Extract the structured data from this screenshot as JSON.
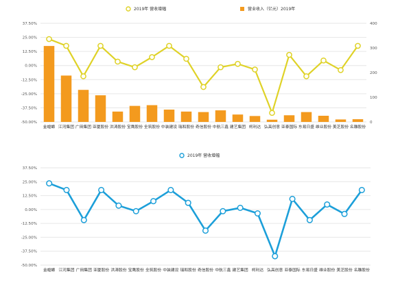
{
  "chart_data": [
    {
      "type": "bar+line",
      "legend_position": "top",
      "grid": true,
      "categories": [
        "金螳螂",
        "江河集团",
        "广田集团",
        "亚厦股份",
        "洪涛股份",
        "宝鹰股份",
        "全筑股份",
        "中装建设",
        "瑞和股份",
        "奇信股份",
        "中航三鑫",
        "建艺集团",
        "柯利达",
        "弘高创意",
        "亚泰国际",
        "东易日盛",
        "维业股份",
        "美芝股份",
        "名雕股份"
      ],
      "series": [
        {
          "name": "2019年 营收增幅",
          "type": "line",
          "axis": "left",
          "color": "#dfd227",
          "values": [
            23.5,
            17.5,
            -9.5,
            17.5,
            3.5,
            -1.5,
            7.5,
            17.5,
            6.0,
            -19.0,
            -1.5,
            1.5,
            -3.5,
            -42.0,
            9.5,
            -9.5,
            4.5,
            -4.0,
            17.5
          ]
        },
        {
          "name": "营业收入（亿元）2019年",
          "type": "bar",
          "axis": "right",
          "color": "#f39a1e",
          "values": [
            308,
            188,
            130,
            108,
            42,
            65,
            68,
            50,
            42,
            40,
            47,
            30,
            24,
            9,
            27,
            40,
            25,
            10,
            11
          ]
        }
      ],
      "y_left": {
        "min": -50,
        "max": 37.5,
        "ticks": [
          "37.50%",
          "25.00%",
          "12.50%",
          "0.00%",
          "-12.50%",
          "-25.00%",
          "-37.50%",
          "-50.00%"
        ]
      },
      "y_right": {
        "min": 0,
        "max": 400,
        "ticks": [
          "400",
          "300",
          "200",
          "100",
          "0"
        ]
      }
    },
    {
      "type": "line",
      "legend_position": "top",
      "grid": true,
      "categories": [
        "金螳螂",
        "江河集团",
        "广田集团",
        "亚厦股份",
        "洪涛股份",
        "宝鹰股份",
        "全筑股份",
        "中装建设",
        "瑞和股份",
        "奇信股份",
        "中航三鑫",
        "建艺集团",
        "柯利达",
        "弘高创意",
        "亚泰国际",
        "东易日盛",
        "维业股份",
        "美芝股份",
        "名雕股份"
      ],
      "series": [
        {
          "name": "2019年 营收增幅",
          "color": "#1c9fd9",
          "values": [
            23.5,
            17.5,
            -9.5,
            17.5,
            3.5,
            -1.5,
            7.5,
            17.5,
            6.0,
            -19.0,
            -1.5,
            1.5,
            -3.5,
            -42.0,
            9.5,
            -9.5,
            4.5,
            -4.0,
            17.5
          ]
        }
      ],
      "y_left": {
        "min": -50,
        "max": 37.5,
        "ticks": [
          "37.50%",
          "25.00%",
          "12.50%",
          "0.00%",
          "-12.50%",
          "-25.00%",
          "-37.50%",
          "-50.00%"
        ]
      }
    }
  ]
}
